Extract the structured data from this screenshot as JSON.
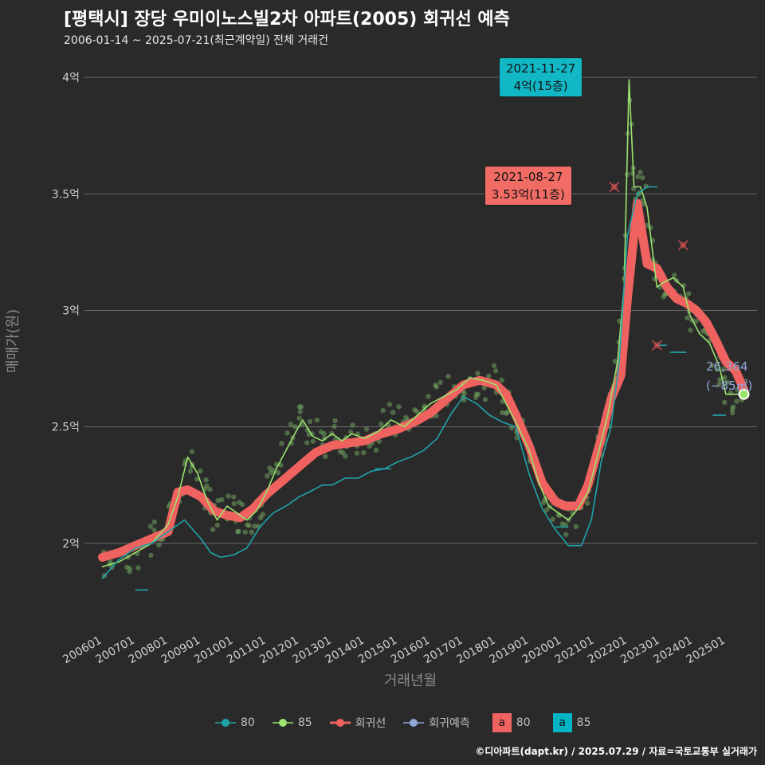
{
  "header": {
    "title": "[평택시] 장당 우미이노스빌2차 아파트(2005) 회귀선 예측",
    "subtitle": "2006-01-14 ~ 2025-07-21(최근계약일) 전체 거래건"
  },
  "footer": "©디아파트(dapt.kr) / 2025.07.29 / 자료=국토교통부 실거래가",
  "colors": {
    "s80": "#1fa3a8",
    "s85": "#9be36d",
    "regression": "#f0625f",
    "prediction": "#8fa7d6",
    "points": "#6fa35e"
  },
  "legend": {
    "items": [
      {
        "label": "80",
        "icon": "teal-line-point"
      },
      {
        "label": "85",
        "icon": "green-line-point"
      },
      {
        "label": "회귀선",
        "icon": "red-line-point"
      },
      {
        "label": "회귀예측",
        "icon": "blue-line-point"
      }
    ],
    "boxes": [
      {
        "letter": "a",
        "label": "80",
        "color": "#f0625f"
      },
      {
        "letter": "a",
        "label": "85",
        "color": "#00b4c4"
      }
    ]
  },
  "annotations": {
    "max_85": {
      "date": "2021-11-27",
      "price": "4억(15층)"
    },
    "max_80": {
      "date": "2021-08-27",
      "price": "3.53억(11층)"
    },
    "latest": {
      "value": "26,364",
      "area": "(~85㎡)"
    }
  },
  "chart_data": {
    "type": "line",
    "xlabel": "거래년월",
    "ylabel": "매매가(원)",
    "x_ticks": [
      "200601",
      "200701",
      "200801",
      "200901",
      "201001",
      "201101",
      "201201",
      "201301",
      "201401",
      "201501",
      "201601",
      "201701",
      "201801",
      "201901",
      "202001",
      "202101",
      "202201",
      "202301",
      "202401",
      "202501"
    ],
    "y_ticks": [
      {
        "value": 2.0,
        "label": "2억"
      },
      {
        "value": 2.5,
        "label": "2.5억"
      },
      {
        "value": 3.0,
        "label": "3억"
      },
      {
        "value": 3.5,
        "label": "3.5억"
      },
      {
        "value": 4.0,
        "label": "4억"
      }
    ],
    "ylim": [
      1.63,
      4.12
    ],
    "xlim": [
      2005.55,
      2025.95
    ],
    "series": [
      {
        "name": "회귀선",
        "x": [
          2006.0,
          2006.5,
          2007.0,
          2007.5,
          2008.0,
          2008.3,
          2008.6,
          2009.0,
          2009.4,
          2009.8,
          2010.2,
          2010.6,
          2011.0,
          2011.5,
          2012.0,
          2012.5,
          2013.0,
          2013.5,
          2014.0,
          2014.5,
          2015.0,
          2015.5,
          2016.0,
          2016.5,
          2017.0,
          2017.5,
          2018.0,
          2018.3,
          2018.6,
          2019.0,
          2019.4,
          2019.8,
          2020.1,
          2020.5,
          2020.8,
          2021.2,
          2021.5,
          2021.8,
          2022.0,
          2022.3,
          2022.6,
          2022.9,
          2023.2,
          2023.5,
          2023.8,
          2024.1,
          2024.4,
          2024.7,
          2025.0,
          2025.3,
          2025.55
        ],
        "values": [
          1.94,
          1.96,
          1.99,
          2.02,
          2.05,
          2.22,
          2.23,
          2.2,
          2.14,
          2.12,
          2.11,
          2.15,
          2.21,
          2.27,
          2.33,
          2.39,
          2.42,
          2.43,
          2.44,
          2.47,
          2.49,
          2.52,
          2.56,
          2.62,
          2.68,
          2.7,
          2.68,
          2.64,
          2.55,
          2.42,
          2.26,
          2.18,
          2.16,
          2.16,
          2.25,
          2.45,
          2.62,
          2.72,
          3.05,
          3.46,
          3.2,
          3.18,
          3.1,
          3.05,
          3.03,
          3.0,
          2.95,
          2.87,
          2.78,
          2.74,
          2.66
        ]
      },
      {
        "name": "85",
        "x": [
          2006.0,
          2006.5,
          2007.0,
          2007.5,
          2008.0,
          2008.3,
          2008.6,
          2008.9,
          2009.2,
          2009.5,
          2009.8,
          2010.1,
          2010.4,
          2010.7,
          2011.0,
          2011.3,
          2011.6,
          2011.9,
          2012.1,
          2012.4,
          2012.7,
          2013.0,
          2013.3,
          2013.6,
          2014.0,
          2014.4,
          2014.8,
          2015.2,
          2015.6,
          2016.0,
          2016.4,
          2016.8,
          2017.2,
          2017.6,
          2018.0,
          2018.3,
          2018.6,
          2019.0,
          2019.3,
          2019.6,
          2019.9,
          2020.2,
          2020.5,
          2020.8,
          2021.1,
          2021.4,
          2021.7,
          2021.9,
          2022.05,
          2022.2,
          2022.4,
          2022.6,
          2022.9,
          2023.1,
          2023.4,
          2023.7,
          2023.9,
          2024.2,
          2024.5,
          2024.8,
          2025.0,
          2025.3,
          2025.55
        ],
        "values": [
          1.9,
          1.92,
          1.96,
          2.0,
          2.08,
          2.2,
          2.37,
          2.3,
          2.18,
          2.1,
          2.16,
          2.13,
          2.1,
          2.14,
          2.22,
          2.32,
          2.4,
          2.48,
          2.53,
          2.46,
          2.44,
          2.47,
          2.44,
          2.47,
          2.45,
          2.48,
          2.53,
          2.5,
          2.55,
          2.6,
          2.63,
          2.66,
          2.71,
          2.7,
          2.68,
          2.6,
          2.52,
          2.4,
          2.26,
          2.16,
          2.13,
          2.1,
          2.15,
          2.22,
          2.38,
          2.55,
          2.78,
          3.1,
          3.99,
          3.53,
          3.53,
          3.44,
          3.1,
          3.12,
          3.14,
          3.1,
          2.98,
          2.9,
          2.86,
          2.76,
          2.64,
          2.64,
          2.64
        ]
      },
      {
        "name": "80",
        "x": [
          2006.0,
          2006.5,
          2007.0,
          2007.5,
          2008.0,
          2008.5,
          2009.0,
          2009.3,
          2009.6,
          2010.0,
          2010.4,
          2010.8,
          2011.2,
          2011.6,
          2012.0,
          2012.3,
          2012.7,
          2013.0,
          2013.4,
          2013.8,
          2014.2,
          2014.6,
          2015.0,
          2015.4,
          2015.8,
          2016.2,
          2016.6,
          2017.0,
          2017.4,
          2017.8,
          2018.2,
          2018.6,
          2019.0,
          2019.4,
          2019.8,
          2020.2,
          2020.6,
          2020.9,
          2021.2,
          2021.5,
          2021.75,
          2022.0,
          2022.3,
          2022.6,
          2022.9
        ],
        "values": [
          1.85,
          1.93,
          1.98,
          2.0,
          2.05,
          2.1,
          2.02,
          1.96,
          1.94,
          1.95,
          1.98,
          2.07,
          2.13,
          2.16,
          2.2,
          2.22,
          2.25,
          2.25,
          2.28,
          2.28,
          2.31,
          2.32,
          2.35,
          2.37,
          2.4,
          2.45,
          2.55,
          2.63,
          2.6,
          2.55,
          2.52,
          2.5,
          2.3,
          2.15,
          2.06,
          1.99,
          1.99,
          2.1,
          2.35,
          2.5,
          2.78,
          3.32,
          3.5,
          3.53,
          3.53
        ]
      }
    ],
    "prediction_segments": [
      {
        "x": [
          2007.0,
          2007.4
        ],
        "values": [
          1.8,
          1.8
        ]
      },
      {
        "x": [
          2014.3,
          2014.8
        ],
        "values": [
          2.32,
          2.32
        ]
      },
      {
        "x": [
          2019.8,
          2020.2
        ],
        "values": [
          2.07,
          2.07
        ]
      },
      {
        "x": [
          2022.9,
          2023.2
        ],
        "values": [
          2.85,
          2.85
        ]
      },
      {
        "x": [
          2023.3,
          2023.8
        ],
        "values": [
          2.82,
          2.82
        ]
      },
      {
        "x": [
          2024.6,
          2025.0
        ],
        "values": [
          2.55,
          2.55
        ]
      }
    ],
    "excluded_points": [
      {
        "x": 2021.6,
        "y": 3.53
      },
      {
        "x": 2022.9,
        "y": 2.85
      },
      {
        "x": 2023.7,
        "y": 3.28
      }
    ],
    "latest_point": {
      "x": 2025.55,
      "y": 2.64
    }
  }
}
